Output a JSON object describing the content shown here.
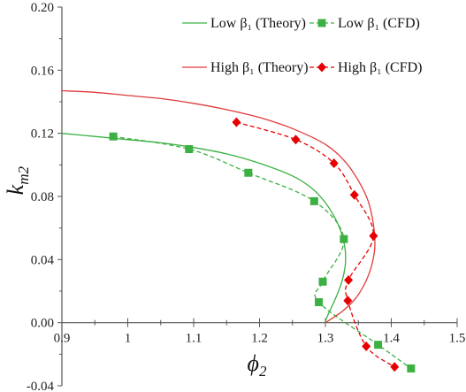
{
  "chart_data": {
    "type": "line",
    "xlabel": "ϕ",
    "xlabel_sub": "2",
    "ylabel": "k",
    "ylabel_sub": "m2",
    "xlim": [
      0.9,
      1.5
    ],
    "ylim": [
      -0.04,
      0.2
    ],
    "x_ticks": [
      "0.9",
      "1",
      "1.1",
      "1.2",
      "1.3",
      "1.4",
      "1.5"
    ],
    "y_ticks": [
      "-0.04",
      "0.00",
      "0.04",
      "0.08",
      "0.12",
      "0.16",
      "0.20"
    ],
    "grid": false,
    "legend_position": "top-right",
    "series": [
      {
        "name": "Low  β₁ (Theory)",
        "style": "solid",
        "marker": "none",
        "color": "#3cb043",
        "points": [
          [
            0.9,
            0.12
          ],
          [
            0.95,
            0.118
          ],
          [
            1.0,
            0.116
          ],
          [
            1.05,
            0.114
          ],
          [
            1.1,
            0.111
          ],
          [
            1.15,
            0.107
          ],
          [
            1.2,
            0.101
          ],
          [
            1.25,
            0.093
          ],
          [
            1.28,
            0.085
          ],
          [
            1.3,
            0.076
          ],
          [
            1.315,
            0.066
          ],
          [
            1.325,
            0.056
          ],
          [
            1.33,
            0.046
          ],
          [
            1.33,
            0.036
          ],
          [
            1.325,
            0.026
          ],
          [
            1.315,
            0.015
          ],
          [
            1.305,
            0.006
          ],
          [
            1.299,
            0.0
          ]
        ]
      },
      {
        "name": "Low β₁ (CFD)",
        "style": "dashed",
        "marker": "square",
        "color": "#3cb043",
        "points": [
          [
            0.978,
            0.118
          ],
          [
            1.093,
            0.11
          ],
          [
            1.183,
            0.095
          ],
          [
            1.283,
            0.077
          ],
          [
            1.328,
            0.053
          ],
          [
            1.296,
            0.026
          ],
          [
            1.29,
            0.013
          ],
          [
            1.38,
            -0.014
          ],
          [
            1.43,
            -0.029
          ]
        ]
      },
      {
        "name": "High β₁ (Theory)",
        "style": "solid",
        "marker": "none",
        "color": "#e03a3a",
        "points": [
          [
            0.9,
            0.147
          ],
          [
            0.95,
            0.146
          ],
          [
            1.0,
            0.144
          ],
          [
            1.05,
            0.142
          ],
          [
            1.1,
            0.139
          ],
          [
            1.15,
            0.135
          ],
          [
            1.2,
            0.13
          ],
          [
            1.25,
            0.123
          ],
          [
            1.3,
            0.113
          ],
          [
            1.33,
            0.102
          ],
          [
            1.35,
            0.09
          ],
          [
            1.365,
            0.077
          ],
          [
            1.373,
            0.062
          ],
          [
            1.375,
            0.048
          ],
          [
            1.37,
            0.036
          ],
          [
            1.36,
            0.025
          ],
          [
            1.345,
            0.015
          ],
          [
            1.325,
            0.007
          ],
          [
            1.3,
            0.0
          ]
        ]
      },
      {
        "name": "High β₁ (CFD)",
        "style": "dashed",
        "marker": "diamond",
        "color": "#e60000",
        "points": [
          [
            1.165,
            0.127
          ],
          [
            1.255,
            0.116
          ],
          [
            1.313,
            0.101
          ],
          [
            1.344,
            0.081
          ],
          [
            1.373,
            0.055
          ],
          [
            1.335,
            0.027
          ],
          [
            1.334,
            0.014
          ],
          [
            1.362,
            -0.015
          ],
          [
            1.405,
            -0.028
          ]
        ]
      }
    ]
  }
}
